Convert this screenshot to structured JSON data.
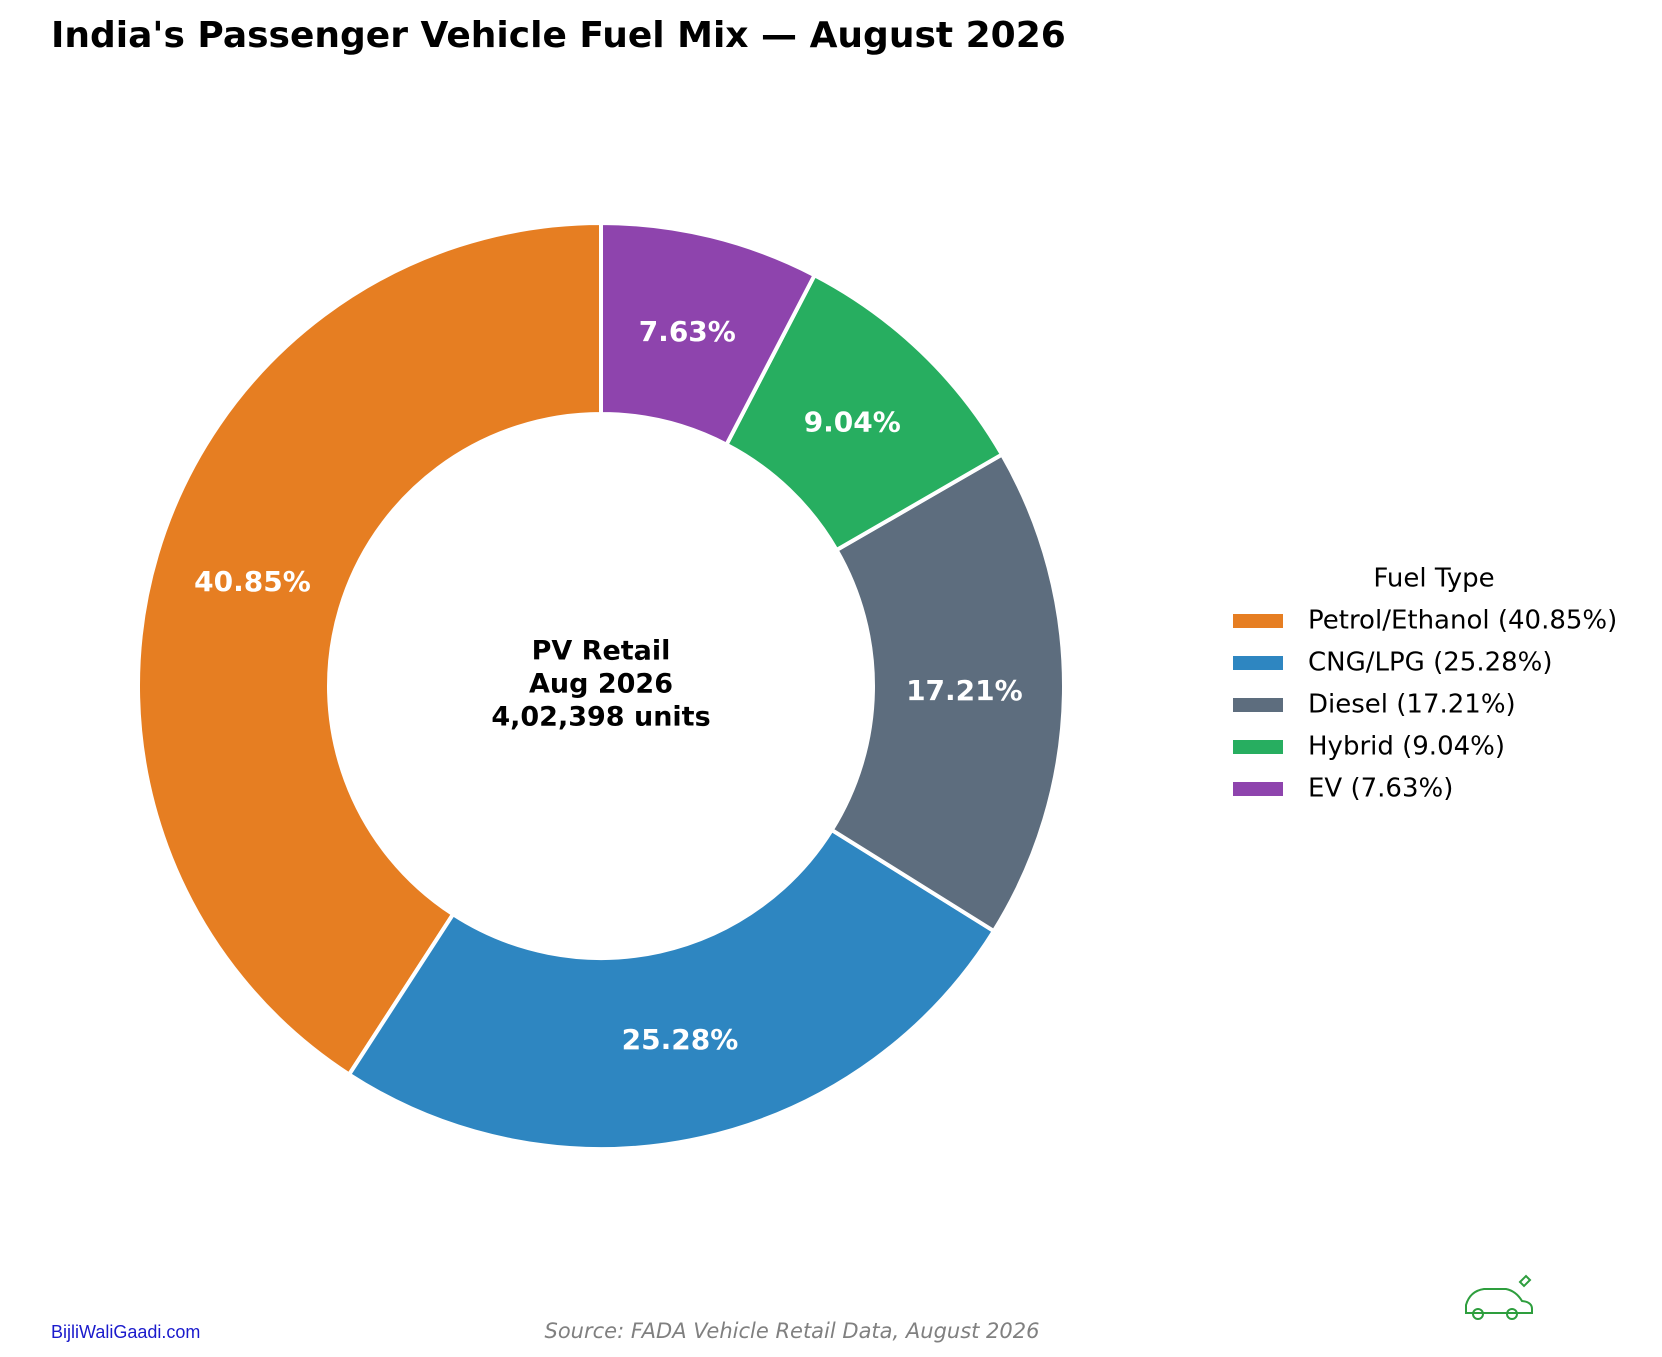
{
  "chart_data": {
    "type": "pie",
    "title": "India's Passenger Vehicle Fuel Mix — August 2026",
    "center_label": [
      "PV Retail",
      "Aug 2026",
      "4,02,398 units"
    ],
    "categories": [
      "Petrol/Ethanol (40.85%)",
      "CNG/LPG (25.28%)",
      "Diesel (17.21%)",
      "Hybrid (9.04%)",
      "EV (7.63%)"
    ],
    "values": [
      40.85,
      25.28,
      17.21,
      9.04,
      7.63
    ],
    "value_labels": [
      "40.85%",
      "25.28%",
      "17.21%",
      "9.04%",
      "7.63%"
    ],
    "colors": [
      "#e67e22",
      "#2e86c1",
      "#5d6d7e",
      "#27ae60",
      "#8e44ad"
    ],
    "legend_title": "Fuel Type",
    "legend": "right"
  },
  "footer": {
    "site": "BijliWaliGaadi.com",
    "source": "Source: FADA Vehicle Retail Data, August 2026"
  }
}
